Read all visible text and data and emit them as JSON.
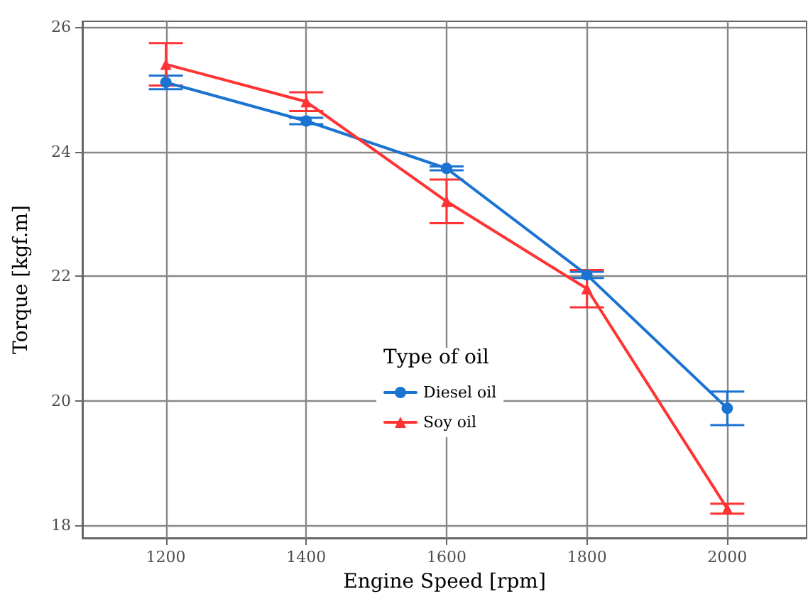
{
  "chart_data": {
    "type": "line",
    "xlabel": "Engine Speed [rpm]",
    "ylabel": "Torque [kgf.m]",
    "legend_title": "Type of oil",
    "x": [
      1200,
      1400,
      1600,
      1800,
      2000
    ],
    "series": [
      {
        "name": "Diesel oil",
        "color": "#1a73d1",
        "marker": "circle",
        "values": [
          25.11,
          24.49,
          23.73,
          22.02,
          19.88
        ],
        "errors": [
          0.11,
          0.05,
          0.03,
          0.05,
          0.27
        ]
      },
      {
        "name": "Soy oil",
        "color": "#ff3333",
        "marker": "triangle",
        "values": [
          25.4,
          24.8,
          23.2,
          21.8,
          18.27
        ],
        "errors": [
          0.34,
          0.15,
          0.35,
          0.3,
          0.08
        ]
      }
    ],
    "xlim": [
      1081,
      2113
    ],
    "xticks": [
      1200,
      1400,
      1600,
      1800,
      2000
    ],
    "ylim": [
      17.8,
      26.09
    ],
    "yticks": [
      18,
      20,
      22,
      24,
      26
    ],
    "grid": true,
    "legend": "center",
    "line_style": "solid"
  }
}
